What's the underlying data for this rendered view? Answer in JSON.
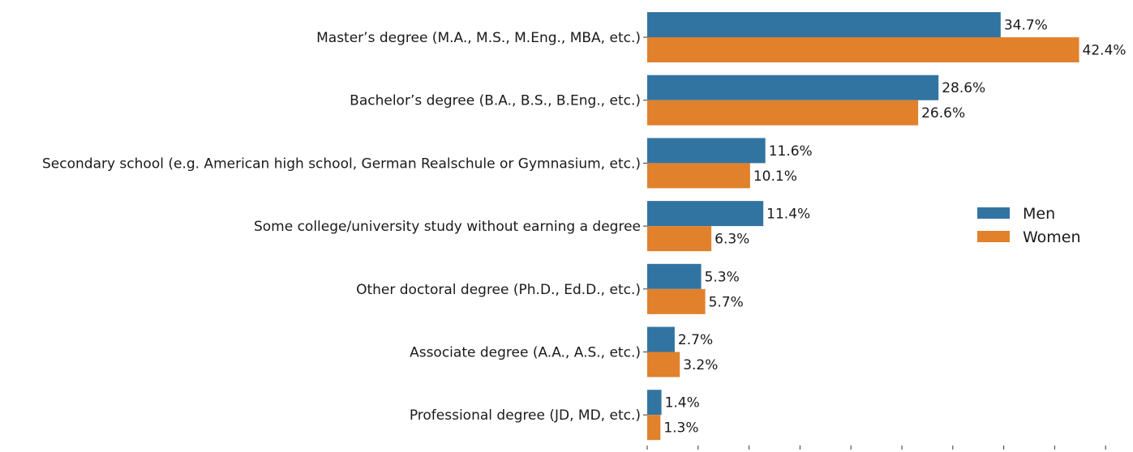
{
  "chart_data": {
    "type": "bar",
    "orientation": "horizontal",
    "categories": [
      "Master’s degree (M.A., M.S., M.Eng., MBA, etc.)",
      "Bachelor’s degree (B.A., B.S., B.Eng., etc.)",
      "Secondary school (e.g. American high school, German Realschule or Gymnasium, etc.)",
      "Some college/university study without earning a degree",
      "Other doctoral degree (Ph.D., Ed.D., etc.)",
      "Associate degree (A.A., A.S., etc.)",
      "Professional degree (JD, MD, etc.)"
    ],
    "series": [
      {
        "name": "Men",
        "color": "#3274a1",
        "values": [
          34.7,
          28.6,
          11.6,
          11.4,
          5.3,
          2.7,
          1.4
        ],
        "labels": [
          "34.7%",
          "28.6%",
          "11.6%",
          "11.4%",
          "5.3%",
          "2.7%",
          "1.4%"
        ]
      },
      {
        "name": "Women",
        "color": "#e1812c",
        "values": [
          42.4,
          26.6,
          10.1,
          6.3,
          5.7,
          3.2,
          1.3
        ],
        "labels": [
          "42.4%",
          "26.6%",
          "10.1%",
          "6.3%",
          "5.7%",
          "3.2%",
          "1.3%"
        ]
      }
    ],
    "title": "",
    "xlabel": "",
    "ylabel": "",
    "xlim": [
      0,
      47.5
    ],
    "x_ticks": [
      0,
      5,
      10,
      15,
      20,
      25,
      30,
      35,
      40,
      45
    ],
    "x_tick_labels_visible": false,
    "grid": false,
    "legend": "right"
  }
}
